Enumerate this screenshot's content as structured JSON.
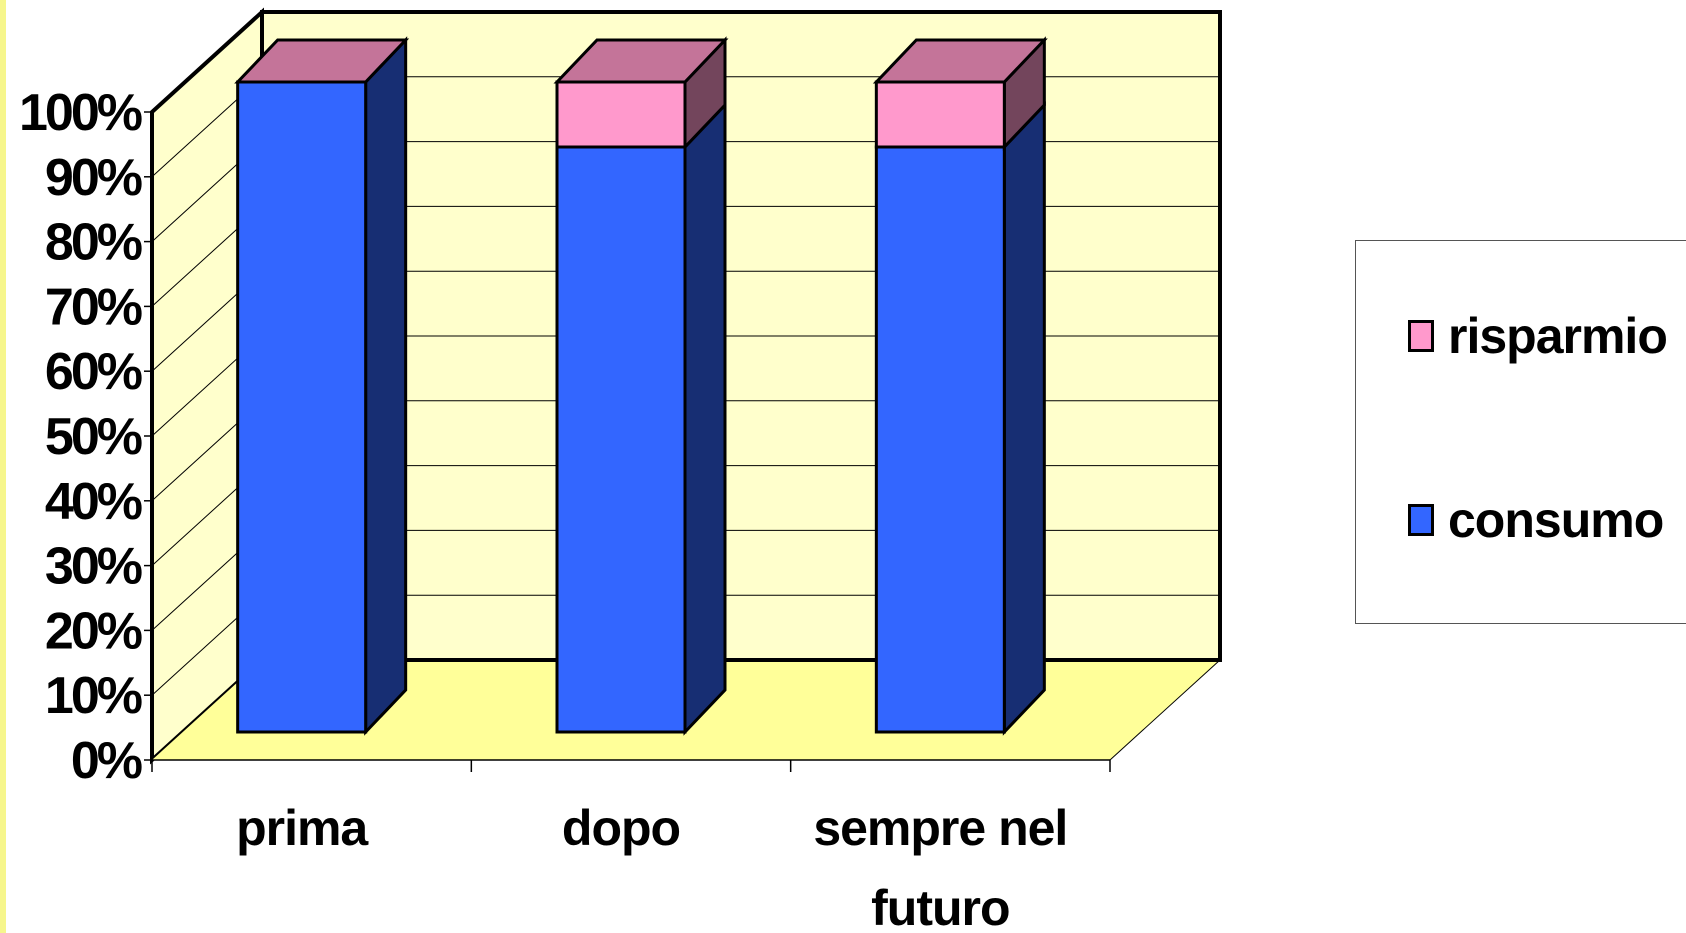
{
  "chart_data": {
    "type": "bar",
    "stacked": true,
    "percent": true,
    "style": "3d-column",
    "categories": [
      "prima",
      "dopo",
      "sempre nel futuro"
    ],
    "series": [
      {
        "name": "consumo",
        "values": [
          100,
          90,
          90
        ],
        "color": "#3366ff"
      },
      {
        "name": "risparmio",
        "values": [
          0,
          10,
          10
        ],
        "color": "#ff99cc"
      }
    ],
    "yticks": [
      "0%",
      "10%",
      "20%",
      "30%",
      "40%",
      "50%",
      "60%",
      "70%",
      "80%",
      "90%",
      "100%"
    ],
    "ylim": [
      0,
      100
    ],
    "title": "",
    "xlabel": "",
    "ylabel": "",
    "grid": true,
    "legend_position": "right",
    "colors": {
      "wall": "#ffffcc",
      "floor": "#ffff99",
      "top_face": "#c47499"
    }
  }
}
